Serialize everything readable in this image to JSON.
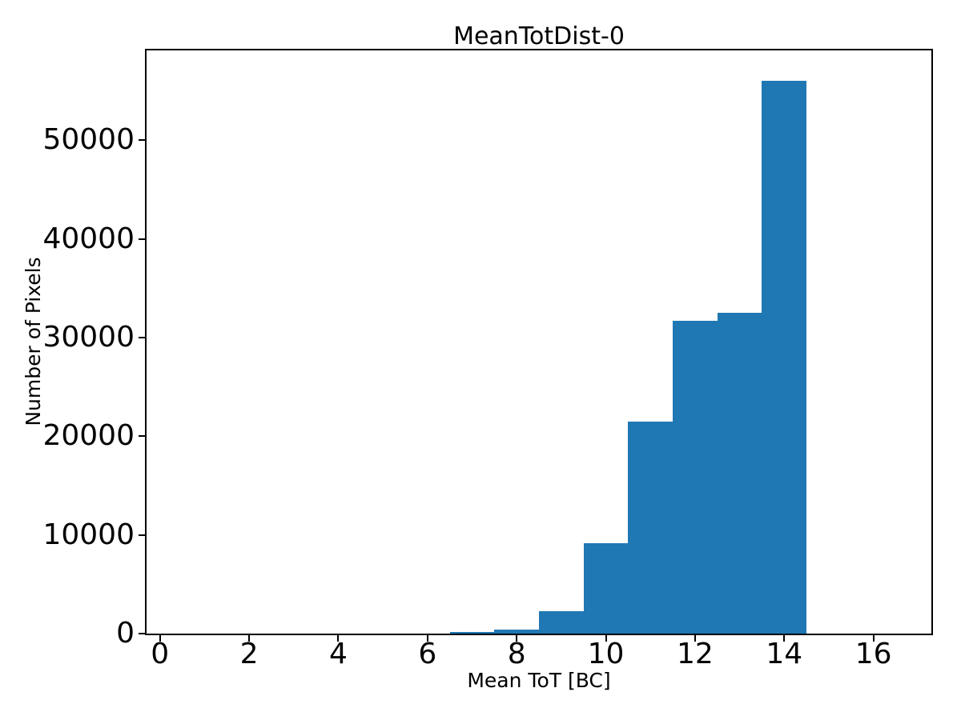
{
  "figure": {
    "background_color": "#ffffff",
    "text_color": "#000000"
  },
  "chart_data": {
    "type": "bar",
    "subtype": "histogram",
    "title": "MeanTotDist-0",
    "xlabel": "Mean ToT [BC]",
    "ylabel": "Number of Pixels",
    "bar_color": "#1f77b4",
    "grid": false,
    "legend": false,
    "xlim": [
      -0.3,
      17.3
    ],
    "ylim": [
      0,
      59100
    ],
    "xticks": {
      "values": [
        0,
        2,
        4,
        6,
        8,
        10,
        12,
        14,
        16
      ],
      "labels": [
        "0",
        "2",
        "4",
        "6",
        "8",
        "10",
        "12",
        "14",
        "16"
      ]
    },
    "yticks": {
      "values": [
        0,
        10000,
        20000,
        30000,
        40000,
        50000
      ],
      "labels": [
        "0",
        "10000",
        "20000",
        "30000",
        "40000",
        "50000"
      ]
    },
    "bin_edges": [
      0.5,
      1.5,
      2.5,
      3.5,
      4.5,
      5.5,
      6.5,
      7.5,
      8.5,
      9.5,
      10.5,
      11.5,
      12.5,
      13.5,
      14.5,
      15.5,
      16.5
    ],
    "counts": [
      0,
      0,
      0,
      0,
      0,
      0,
      150,
      400,
      2250,
      9200,
      21500,
      31700,
      32500,
      56000,
      0,
      0
    ]
  }
}
